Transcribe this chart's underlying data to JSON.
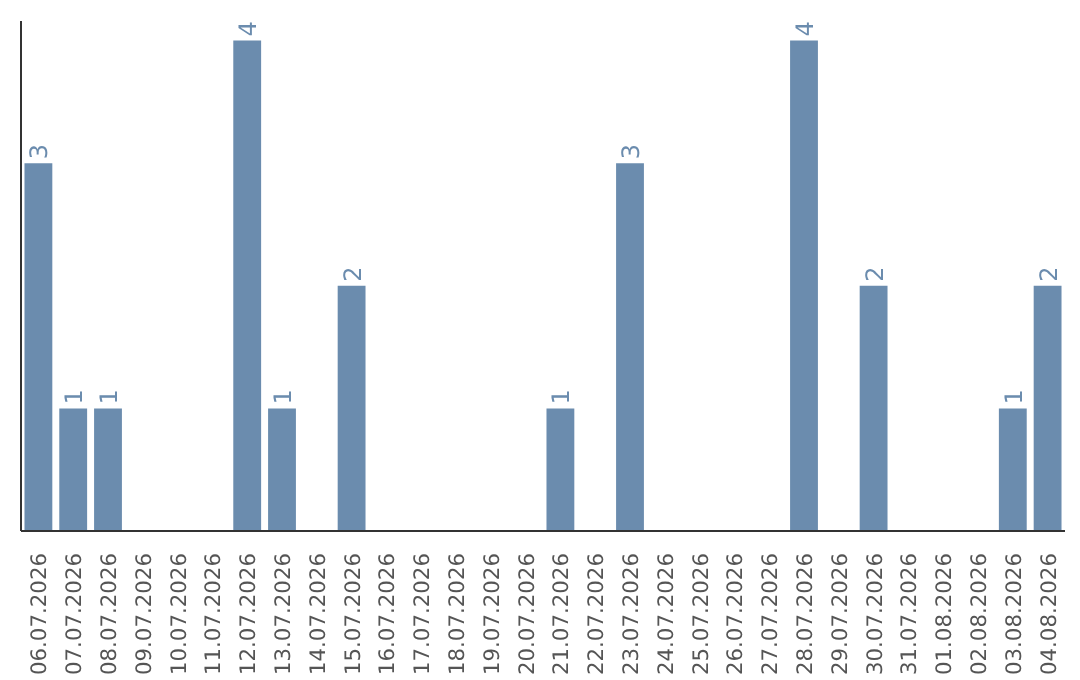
{
  "chart_data": {
    "type": "bar",
    "categories": [
      "06.07.2026",
      "07.07.2026",
      "08.07.2026",
      "09.07.2026",
      "10.07.2026",
      "11.07.2026",
      "12.07.2026",
      "13.07.2026",
      "14.07.2026",
      "15.07.2026",
      "16.07.2026",
      "17.07.2026",
      "18.07.2026",
      "19.07.2026",
      "20.07.2026",
      "21.07.2026",
      "22.07.2026",
      "23.07.2026",
      "24.07.2026",
      "25.07.2026",
      "26.07.2026",
      "27.07.2026",
      "28.07.2026",
      "29.07.2026",
      "30.07.2026",
      "31.07.2026",
      "01.08.2026",
      "02.08.2026",
      "03.08.2026",
      "04.08.2026"
    ],
    "values": [
      3,
      1,
      1,
      0,
      0,
      0,
      4,
      1,
      0,
      2,
      0,
      0,
      0,
      0,
      0,
      1,
      0,
      3,
      0,
      0,
      0,
      0,
      4,
      0,
      2,
      0,
      0,
      0,
      1,
      2
    ],
    "value_labels": [
      "3",
      "1",
      "1",
      null,
      null,
      null,
      "4",
      "1",
      null,
      "2",
      null,
      null,
      null,
      null,
      null,
      "1",
      null,
      "3",
      null,
      null,
      null,
      null,
      "4",
      null,
      "2",
      null,
      null,
      null,
      "1",
      "2"
    ],
    "color": "#6b8cae",
    "grid": false,
    "tick_labels": "x"
  }
}
